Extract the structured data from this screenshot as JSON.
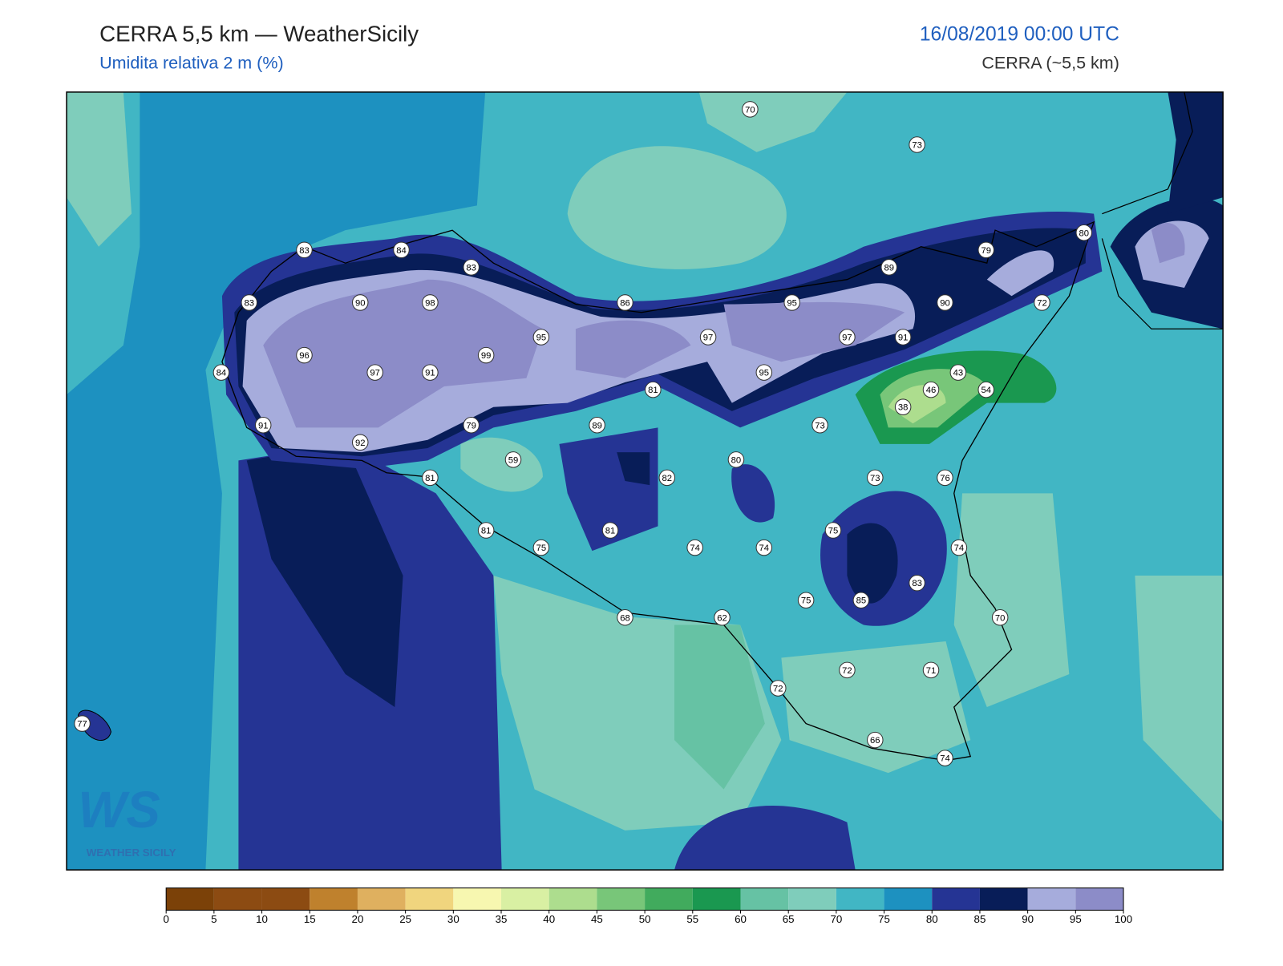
{
  "header": {
    "title": "CERRA 5,5 km — WeatherSicily",
    "subtitle": "Umidita relativa 2 m (%)",
    "datetime": "16/08/2019 00:00 UTC",
    "model": "CERRA (~5,5 km)"
  },
  "stations": [
    70,
    73,
    83,
    84,
    83,
    89,
    79,
    80,
    83,
    90,
    98,
    86,
    95,
    90,
    72,
    95,
    97,
    97,
    91,
    96,
    99,
    84,
    97,
    91,
    95,
    43,
    81,
    46,
    54,
    38,
    91,
    79,
    89,
    73,
    92,
    59,
    80,
    81,
    82,
    73,
    76,
    81,
    81,
    75,
    75,
    74,
    74,
    74,
    83,
    75,
    85,
    68,
    62,
    70,
    72,
    71,
    72,
    77,
    66,
    74
  ],
  "colorbar": {
    "ticks": [
      0,
      5,
      10,
      15,
      20,
      25,
      30,
      35,
      40,
      45,
      50,
      55,
      60,
      65,
      70,
      75,
      80,
      85,
      90,
      95,
      100
    ],
    "colors": [
      "#7b4108",
      "#8c4b12",
      "#8c4b12",
      "#bf812d",
      "#dfb05f",
      "#f0d57e",
      "#f7f7b0",
      "#d9f0a3",
      "#addd8e",
      "#78c679",
      "#41ab5d",
      "#1a9850",
      "#66c2a4",
      "#7fcdbb",
      "#41b6c4",
      "#1d91c0",
      "#253494",
      "#081d58",
      "#a6acdc",
      "#8c8cc8"
    ]
  },
  "logo": {
    "mark": "WS",
    "text": "WEATHER SICILY"
  }
}
